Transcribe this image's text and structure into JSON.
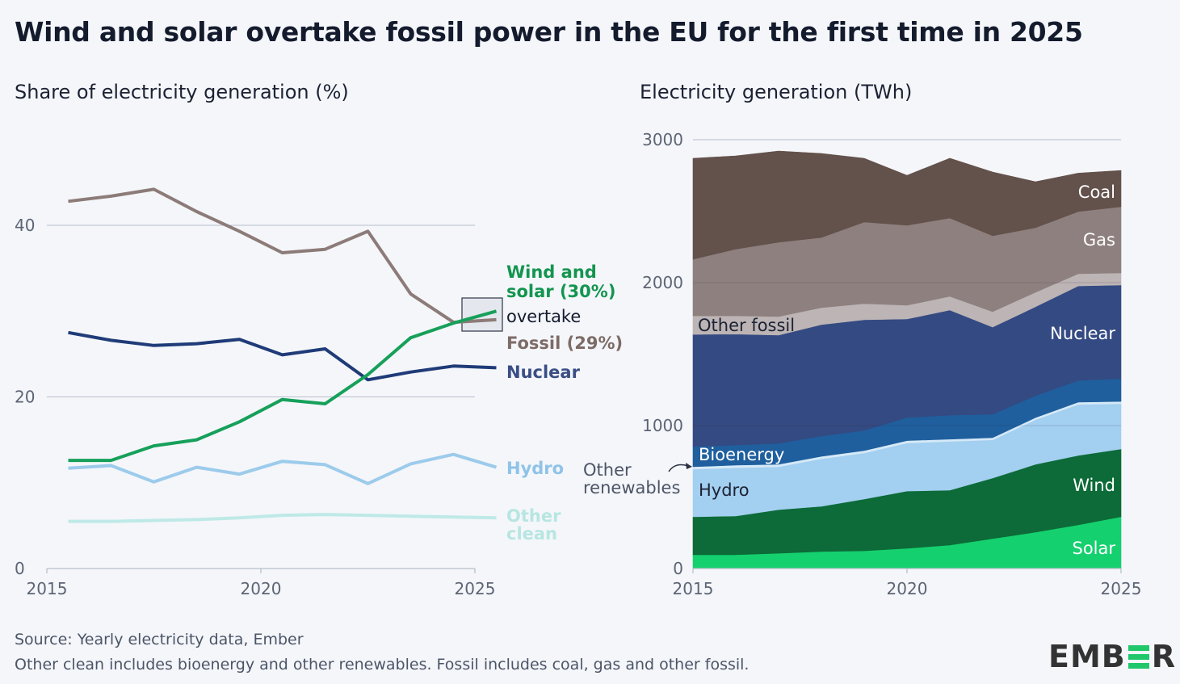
{
  "title": "Wind and solar overtake fossil power in the EU for the first time in 2025",
  "footer": {
    "source": "Source: Yearly electricity data, Ember",
    "note": "Other clean includes bioenergy and other renewables. Fossil includes coal, gas and other fossil."
  },
  "logo": {
    "text_left": "EMB",
    "text_right": "R",
    "accent": "#20c86b"
  },
  "chart_data": [
    {
      "type": "line",
      "title": "Share of electricity generation (%)",
      "xlabel": "",
      "ylabel": "",
      "x": [
        2015,
        2016,
        2017,
        2018,
        2019,
        2020,
        2021,
        2022,
        2023,
        2024,
        2025
      ],
      "xticks": [
        "2015",
        "2020",
        "2025"
      ],
      "yticks": [
        "0",
        "20",
        "40"
      ],
      "xlim": [
        2015,
        2025
      ],
      "ylim": [
        0,
        50
      ],
      "grid": true,
      "series": [
        {
          "name": "Fossil",
          "label": "Fossil (29%)",
          "color": "#8c7b78",
          "label_color": "#7d6b66",
          "values": [
            42.8,
            43.4,
            44.2,
            41.6,
            39.3,
            36.8,
            37.2,
            39.3,
            32.0,
            28.7,
            29.0
          ]
        },
        {
          "name": "Nuclear",
          "label": "Nuclear",
          "color": "#1f3b78",
          "label_color": "#3a4e85",
          "values": [
            27.5,
            26.6,
            26.0,
            26.2,
            26.7,
            24.9,
            25.6,
            22.0,
            22.9,
            23.6,
            23.4
          ]
        },
        {
          "name": "Wind and solar",
          "label": "Wind and solar (30%)",
          "color": "#16a05a",
          "label_color": "#13954f",
          "values": [
            12.6,
            12.6,
            14.3,
            15.0,
            17.1,
            19.7,
            19.2,
            22.6,
            26.9,
            28.6,
            30.0
          ]
        },
        {
          "name": "Hydro",
          "label": "Hydro",
          "color": "#9ccbeb",
          "label_color": "#8fc3e8",
          "values": [
            11.7,
            12.0,
            10.1,
            11.8,
            11.0,
            12.5,
            12.1,
            9.9,
            12.2,
            13.3,
            11.8
          ]
        },
        {
          "name": "Other clean",
          "label": "Other clean",
          "color": "#bfe9e6",
          "label_color": "#b7e6e2",
          "values": [
            5.5,
            5.5,
            5.6,
            5.7,
            5.9,
            6.2,
            6.3,
            6.2,
            6.1,
            6.0,
            5.9
          ]
        }
      ],
      "annotations": [
        {
          "text": "overtake",
          "year": 2025,
          "highlight": true
        }
      ],
      "legend": "right-inline"
    },
    {
      "type": "area",
      "stacked": true,
      "title": "Electricity generation (TWh)",
      "xlabel": "",
      "ylabel": "",
      "x": [
        2015,
        2016,
        2017,
        2018,
        2019,
        2020,
        2021,
        2022,
        2023,
        2024,
        2025
      ],
      "xticks": [
        "2015",
        "2020",
        "2025"
      ],
      "yticks": [
        "0",
        "1000",
        "2000",
        "3000"
      ],
      "xlim": [
        2015,
        2025
      ],
      "ylim": [
        0,
        3000
      ],
      "grid": true,
      "series": [
        {
          "name": "Solar",
          "color": "#15d06f",
          "label_color": "#ffffff",
          "values": [
            96,
            96,
            107,
            119,
            124,
            141,
            164,
            209,
            254,
            305,
            362
          ]
        },
        {
          "name": "Wind",
          "color": "#0c6b38",
          "label_color": "#ffffff",
          "values": [
            266,
            271,
            305,
            316,
            362,
            401,
            384,
            424,
            475,
            486,
            474
          ]
        },
        {
          "name": "Hydro",
          "color": "#a3cff0",
          "label_color": "#1c2233",
          "values": [
            333,
            338,
            300,
            333,
            322,
            336,
            341,
            267,
            311,
            357,
            317
          ]
        },
        {
          "name": "Other renewables",
          "color": "#d5e9f7",
          "label_color": "#1c2233",
          "values": [
            17,
            18,
            17,
            17,
            17,
            17,
            16,
            15,
            16,
            16,
            16
          ]
        },
        {
          "name": "Bioenergy",
          "color": "#1f5f9e",
          "label_color": "#ffffff",
          "values": [
            141,
            141,
            147,
            142,
            141,
            161,
            168,
            164,
            153,
            152,
            159
          ]
        },
        {
          "name": "Nuclear",
          "color": "#344a82",
          "label_color": "#ffffff",
          "values": [
            785,
            776,
            757,
            779,
            774,
            690,
            735,
            610,
            622,
            661,
            655
          ]
        },
        {
          "name": "Other fossil",
          "color": "#bcb4b5",
          "label_color": "#1c2233",
          "values": [
            130,
            128,
            130,
            119,
            113,
            96,
            96,
            108,
            101,
            85,
            85
          ]
        },
        {
          "name": "Gas",
          "color": "#8e807e",
          "label_color": "#ffffff",
          "values": [
            396,
            467,
            520,
            491,
            571,
            559,
            548,
            531,
            452,
            435,
            463
          ]
        },
        {
          "name": "Coal",
          "color": "#63514b",
          "label_color": "#ffffff",
          "values": [
            706,
            652,
            638,
            588,
            446,
            350,
            418,
            446,
            322,
            269,
            254
          ]
        }
      ],
      "annotations": [
        {
          "text_line1": "Other",
          "text_line2": "renewables",
          "points_to": "Other renewables"
        }
      ],
      "legend": "inline"
    }
  ]
}
